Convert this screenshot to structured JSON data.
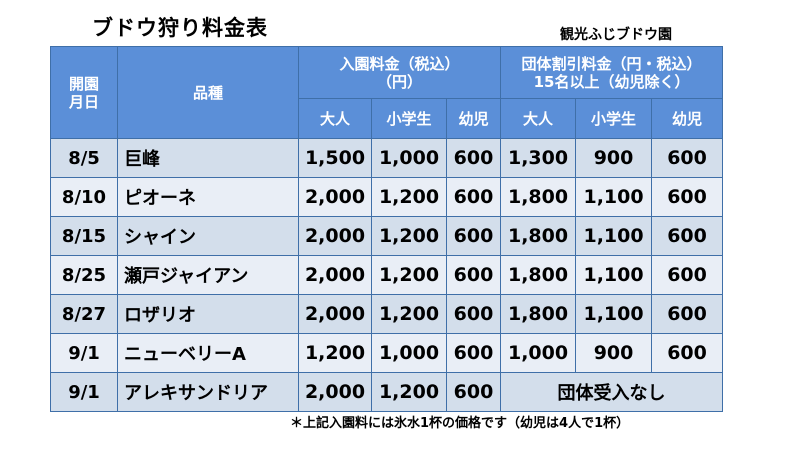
{
  "title": "ブドウ狩り料金表",
  "venue": "観光ふじブドウ園",
  "header": {
    "open_date": [
      "開園",
      "月日"
    ],
    "variety": "品種",
    "admission": [
      "入園料金（税込）",
      "（円）"
    ],
    "group": [
      "団体割引料金（円・税込）",
      "15名以上（幼児除く）"
    ],
    "sub": {
      "adult": "大人",
      "elementary": "小学生",
      "infant": "幼児"
    }
  },
  "rows": [
    {
      "date": "8/5",
      "variety": "巨峰",
      "adult": "1,500",
      "elementary": "1,000",
      "infant": "600",
      "g_adult": "1,300",
      "g_elementary": "900",
      "g_infant": "600"
    },
    {
      "date": "8/10",
      "variety": "ピオーネ",
      "adult": "2,000",
      "elementary": "1,200",
      "infant": "600",
      "g_adult": "1,800",
      "g_elementary": "1,100",
      "g_infant": "600"
    },
    {
      "date": "8/15",
      "variety": "シャイン",
      "adult": "2,000",
      "elementary": "1,200",
      "infant": "600",
      "g_adult": "1,800",
      "g_elementary": "1,100",
      "g_infant": "600"
    },
    {
      "date": "8/25",
      "variety": "瀬戸ジャイアン",
      "adult": "2,000",
      "elementary": "1,200",
      "infant": "600",
      "g_adult": "1,800",
      "g_elementary": "1,100",
      "g_infant": "600"
    },
    {
      "date": "8/27",
      "variety": "ロザリオ",
      "adult": "2,000",
      "elementary": "1,200",
      "infant": "600",
      "g_adult": "1,800",
      "g_elementary": "1,100",
      "g_infant": "600"
    },
    {
      "date": "9/1",
      "variety": "ニューベリーA",
      "adult": "1,200",
      "elementary": "1,000",
      "infant": "600",
      "g_adult": "1,000",
      "g_elementary": "900",
      "g_infant": "600"
    },
    {
      "date": "9/1",
      "variety": "アレキサンドリア",
      "adult": "2,000",
      "elementary": "1,200",
      "infant": "600",
      "group_note": "団体受入なし"
    }
  ],
  "note": "＊上記入園料には氷水1杯の価格です（幼児は4人で1杯）"
}
